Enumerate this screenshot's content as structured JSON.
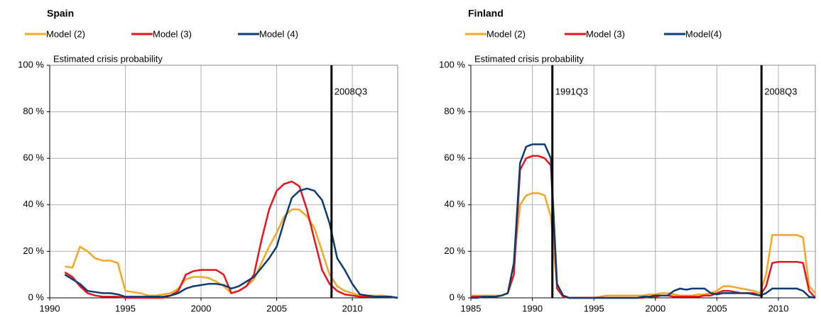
{
  "chart_data": [
    {
      "type": "line",
      "title": "Spain",
      "ylabel": "Estimated crisis probability",
      "x": [
        1991,
        1991.5,
        1992,
        1992.5,
        1993,
        1993.5,
        1994,
        1994.5,
        1995,
        1995.5,
        1996,
        1996.5,
        1997,
        1997.5,
        1998,
        1998.5,
        1999,
        1999.5,
        2000,
        2000.5,
        2001,
        2001.5,
        2002,
        2002.5,
        2003,
        2003.5,
        2004,
        2004.5,
        2005,
        2005.5,
        2006,
        2006.5,
        2007,
        2007.5,
        2008,
        2008.5,
        2009,
        2009.5,
        2010,
        2010.5,
        2011,
        2011.5,
        2012,
        2012.5,
        2013
      ],
      "series": [
        {
          "name": "Model (2)",
          "color": "#f5a623",
          "values": [
            13.5,
            13,
            22,
            20,
            17,
            16,
            16,
            15,
            3,
            2.5,
            2,
            1,
            1,
            1.5,
            2,
            4,
            8,
            9,
            9,
            8.5,
            7,
            5,
            2,
            3,
            5,
            8,
            15,
            22,
            28,
            35,
            38,
            38,
            35,
            30,
            20,
            10,
            5,
            3,
            2,
            1,
            1,
            1,
            1,
            0.5,
            0
          ]
        },
        {
          "name": "Model (3)",
          "color": "#e8141c",
          "values": [
            11,
            9,
            5,
            2,
            1,
            0.5,
            0.5,
            0.5,
            0,
            0,
            0,
            0,
            0,
            0,
            1,
            3,
            10,
            11.5,
            12,
            12,
            12,
            10,
            2,
            3,
            5,
            10,
            25,
            38,
            46,
            49,
            50,
            48,
            38,
            25,
            12,
            6,
            3,
            1.5,
            1,
            0.5,
            0.5,
            0.5,
            0.5,
            0.5,
            0
          ]
        },
        {
          "name": "Model (4)",
          "color": "#0f3b73",
          "values": [
            10,
            8,
            6,
            3,
            2.5,
            2,
            2,
            1.5,
            0.5,
            0.5,
            0.5,
            0.5,
            0.5,
            0.5,
            1,
            2,
            4,
            5,
            5.5,
            6,
            6,
            5.5,
            4,
            5,
            7,
            9,
            13,
            17,
            22,
            33,
            43,
            46,
            47,
            46,
            42,
            32,
            17,
            12,
            6,
            1.5,
            1,
            0.5,
            0.5,
            0.5,
            0
          ]
        }
      ],
      "markers": [
        {
          "x": 2008.625,
          "label": "2008Q3"
        }
      ],
      "xlim": [
        1990,
        2013
      ],
      "xticks": [
        1990,
        1995,
        2000,
        2005,
        2010
      ],
      "ylim": [
        0,
        100
      ],
      "yticks": [
        {
          "value": 0,
          "label": "0 %"
        },
        {
          "value": 20,
          "label": "20 %"
        },
        {
          "value": 40,
          "label": "40 %"
        },
        {
          "value": 60,
          "label": "60 %"
        },
        {
          "value": 80,
          "label": "80 %"
        },
        {
          "value": 100,
          "label": "100 %"
        }
      ],
      "grid": true
    },
    {
      "type": "line",
      "title": "Finland",
      "ylabel": "Estimated crisis probability",
      "x": [
        1985,
        1985.5,
        1986,
        1986.5,
        1987,
        1987.5,
        1988,
        1988.5,
        1989,
        1989.5,
        1990,
        1990.5,
        1991,
        1991.5,
        1992,
        1992.5,
        1993,
        1993.5,
        1994,
        1994.5,
        1995,
        1995.5,
        1996,
        1996.5,
        1997,
        1997.5,
        1998,
        1998.5,
        1999,
        1999.5,
        2000,
        2000.5,
        2001,
        2001.5,
        2002,
        2002.5,
        2003,
        2003.5,
        2004,
        2004.5,
        2005,
        2005.5,
        2006,
        2006.5,
        2007,
        2007.5,
        2008,
        2008.5,
        2009,
        2009.5,
        2010,
        2010.5,
        2011,
        2011.5,
        2012,
        2012.5,
        2013
      ],
      "series": [
        {
          "name": "Model (2)",
          "color": "#f5a623",
          "values": [
            1,
            1,
            1,
            1,
            1,
            1,
            2,
            15,
            40,
            44,
            45,
            45,
            44,
            35,
            5,
            0.5,
            0,
            0,
            0,
            0,
            0,
            0.5,
            1,
            1,
            1,
            1,
            1,
            1,
            1,
            1.5,
            1.5,
            2,
            2,
            1.5,
            1,
            1,
            1,
            1.5,
            1.5,
            2,
            3,
            5,
            5,
            4.5,
            4,
            3.5,
            3,
            2,
            10,
            27,
            27,
            27,
            27,
            27,
            26,
            5,
            2
          ]
        },
        {
          "name": "Model (3)",
          "color": "#e8141c",
          "values": [
            0.5,
            0.5,
            0.5,
            0.5,
            0.5,
            1,
            2,
            10,
            55,
            60,
            61,
            61,
            60,
            57,
            4,
            0.5,
            0,
            0,
            0,
            0,
            0,
            0,
            0,
            0,
            0,
            0,
            0,
            0,
            0,
            0.5,
            0.5,
            1,
            1,
            0.5,
            0.5,
            0.5,
            0.5,
            0.5,
            1,
            1,
            2,
            3,
            3,
            2.5,
            2,
            2,
            2,
            1,
            5,
            15,
            15.5,
            15.5,
            15.5,
            15.5,
            15,
            3,
            0
          ]
        },
        {
          "name": "Model(4)",
          "color": "#0f3b73",
          "values": [
            0,
            0,
            0.5,
            0.5,
            0.5,
            1,
            2,
            15,
            58,
            65,
            66,
            66,
            66,
            60,
            6,
            1,
            0,
            0,
            0,
            0,
            0,
            0,
            0,
            0,
            0,
            0,
            0,
            0,
            0.5,
            0.5,
            1,
            1,
            1,
            3,
            4,
            3.5,
            4,
            4,
            4,
            2,
            1.5,
            2,
            2,
            2,
            2,
            2,
            1.5,
            1,
            2,
            4,
            4,
            4,
            4,
            4,
            3,
            0.5,
            0
          ]
        }
      ],
      "markers": [
        {
          "x": 1991.625,
          "label": "1991Q3"
        },
        {
          "x": 2008.625,
          "label": "2008Q3"
        }
      ],
      "xlim": [
        1985,
        2013
      ],
      "xticks": [
        1985,
        1990,
        1995,
        2000,
        2005,
        2010
      ],
      "ylim": [
        0,
        100
      ],
      "yticks": [
        {
          "value": 0,
          "label": "0 %"
        },
        {
          "value": 20,
          "label": "20 %"
        },
        {
          "value": 40,
          "label": "40 %"
        },
        {
          "value": 60,
          "label": "60 %"
        },
        {
          "value": 80,
          "label": "80 %"
        },
        {
          "value": 100,
          "label": "100 %"
        }
      ],
      "grid": true
    }
  ]
}
